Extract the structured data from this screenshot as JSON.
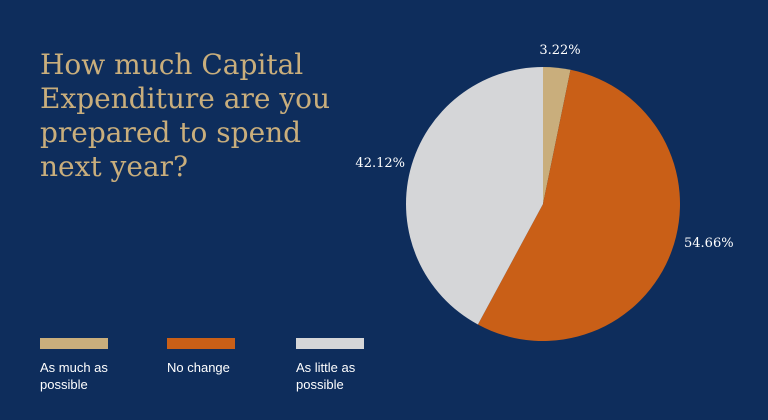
{
  "chart_data": {
    "type": "pie",
    "title": "How much Capital\nExpenditure are you\nprepared to spend\nnext year?",
    "slices": [
      {
        "label": "As much as\npossible",
        "value": 3.22,
        "display": "3.22%",
        "color": "#c9ae7c"
      },
      {
        "label": "No change",
        "value": 54.66,
        "display": "54.66%",
        "color": "#c95f17"
      },
      {
        "label": "As little as\npossible",
        "value": 42.12,
        "display": "42.12%",
        "color": "#d5d6d8"
      }
    ],
    "legend_position": "bottom-left"
  }
}
